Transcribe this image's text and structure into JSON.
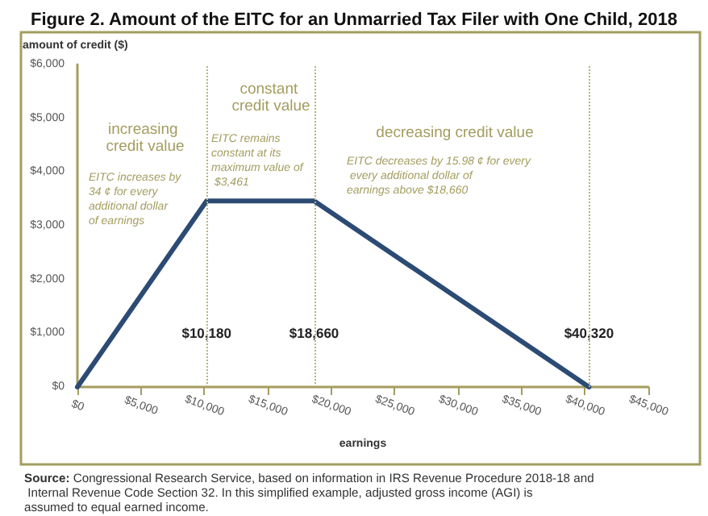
{
  "chart_data": {
    "type": "line",
    "title": "Figure 2. Amount of the EITC for an Unmarried Tax Filer with One Child, 2018",
    "xlabel": "earnings",
    "ylabel": "amount of credit ($)",
    "x": [
      0,
      10180,
      18660,
      40320
    ],
    "series": [
      {
        "color": "#2c4b74",
        "values": [
          0,
          3461,
          3461,
          0
        ]
      }
    ],
    "xlim": [
      0,
      45000
    ],
    "xticks": [
      {
        "value": 0,
        "label": "$0"
      },
      {
        "value": 5000,
        "label": "$5,000"
      },
      {
        "value": 10000,
        "label": "$10,000"
      },
      {
        "value": 15000,
        "label": "$15,000"
      },
      {
        "value": 20000,
        "label": "$20,000"
      },
      {
        "value": 25000,
        "label": "$25,000"
      },
      {
        "value": 30000,
        "label": "$30,000"
      },
      {
        "value": 35000,
        "label": "$35,000"
      },
      {
        "value": 40000,
        "label": "$40,000"
      },
      {
        "value": 45000,
        "label": "$45,000"
      }
    ],
    "ylim": [
      0,
      6000
    ],
    "yticks": [
      {
        "value": 0,
        "label": "$0"
      },
      {
        "value": 1000,
        "label": "$1,000"
      },
      {
        "value": 2000,
        "label": "$2,000"
      },
      {
        "value": 3000,
        "label": "$3,000"
      },
      {
        "value": 4000,
        "label": "$4,000"
      },
      {
        "value": 5000,
        "label": "$5,000"
      },
      {
        "value": 6000,
        "label": "$6,000"
      }
    ],
    "ref_lines": [
      {
        "axis": "x",
        "value": 10180,
        "label": "$10,180",
        "color": "#b8b27e",
        "line_style": "dotted"
      },
      {
        "axis": "x",
        "value": 18660,
        "label": "$18,660",
        "color": "#b8b27e",
        "line_style": "dotted"
      },
      {
        "axis": "x",
        "value": 40320,
        "label": "$40,320",
        "color": "#b8b27e",
        "line_style": "dotted"
      }
    ],
    "annotations": [
      "increasing credit value",
      "EITC increases by 34 ¢ for every additional dollar of earnings",
      "constant credit value",
      "EITC remains constant at its maximum value of $3,461",
      "decreasing credit value",
      "EITC decreases by 15.98 ¢ for every every additional dollar of earnings above $18,660",
      "Source: Congressional Research Service, based on information in IRS Revenue Procedure 2018-18 and Internal Revenue Code Section 32. In this simplified example, adjusted gross income (AGI) is assumed to equal earned income."
    ],
    "grid": false,
    "marker": "none",
    "line_style": "solid"
  }
}
